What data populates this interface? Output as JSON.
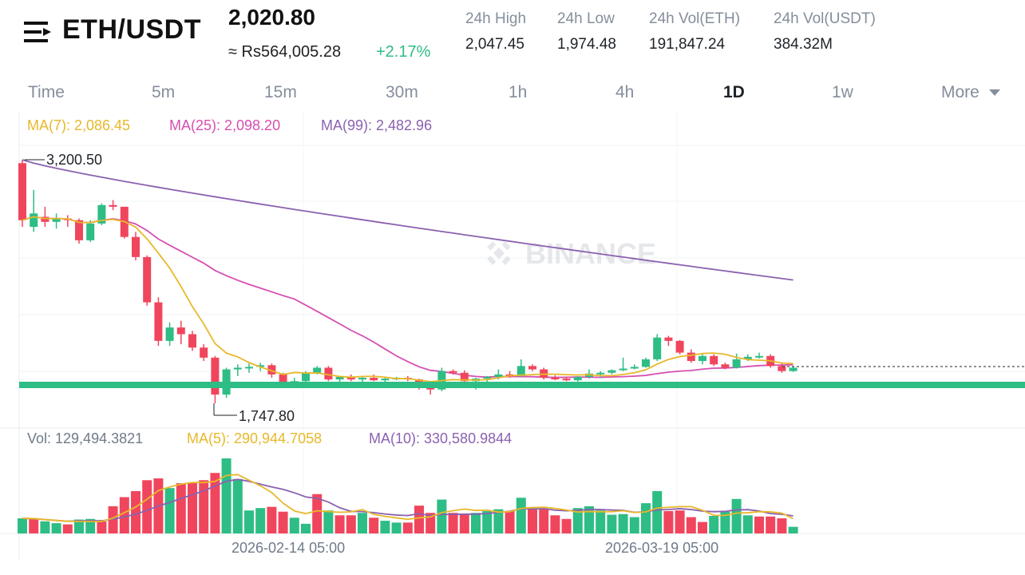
{
  "header": {
    "pair": "ETH/USDT",
    "price": "2,020.80",
    "fiat_price": "≈ Rs564,005.28",
    "change": "+2.17%",
    "stats": [
      {
        "label": "24h High",
        "value": "2,047.45"
      },
      {
        "label": "24h Low",
        "value": "1,974.48"
      },
      {
        "label": "24h Vol(ETH)",
        "value": "191,847.24"
      },
      {
        "label": "24h Vol(USDT)",
        "value": "384.32M"
      }
    ]
  },
  "tabs": [
    "Time",
    "5m",
    "15m",
    "30m",
    "1h",
    "4h",
    "1D",
    "1w",
    "More"
  ],
  "active_tab": "1D",
  "legend": {
    "ma7": "MA(7): 2,086.45",
    "ma25": "MA(25): 2,098.20",
    "ma99": "MA(99): 2,482.96",
    "vol": "Vol: 129,494.3821",
    "vol_ma5": "MA(5): 290,944.7058",
    "vol_ma10": "MA(10): 330,580.9844"
  },
  "watermark": "BINANCE",
  "colors": {
    "up": "#2ebd85",
    "down": "#f0465d",
    "ma7": "#e8b82a",
    "ma25": "#d64fb1",
    "ma99": "#8b61b0"
  },
  "chart_data": {
    "type": "candlestick",
    "high_marker": "3,200.50",
    "low_marker": "1,747.80",
    "x_labels": [
      "2026-02-14 05:00",
      "2026-03-19 05:00"
    ],
    "candles": [
      {
        "o": 3180,
        "h": 3200.5,
        "l": 2800,
        "c": 2840
      },
      {
        "o": 2800,
        "h": 3020,
        "l": 2770,
        "c": 2880
      },
      {
        "o": 2860,
        "h": 2920,
        "l": 2800,
        "c": 2830
      },
      {
        "o": 2830,
        "h": 2880,
        "l": 2790,
        "c": 2850
      },
      {
        "o": 2850,
        "h": 2870,
        "l": 2800,
        "c": 2840
      },
      {
        "o": 2840,
        "h": 2850,
        "l": 2700,
        "c": 2720
      },
      {
        "o": 2720,
        "h": 2840,
        "l": 2710,
        "c": 2820
      },
      {
        "o": 2820,
        "h": 2940,
        "l": 2810,
        "c": 2930
      },
      {
        "o": 2930,
        "h": 2960,
        "l": 2900,
        "c": 2920
      },
      {
        "o": 2920,
        "h": 2920,
        "l": 2730,
        "c": 2740
      },
      {
        "o": 2740,
        "h": 2770,
        "l": 2600,
        "c": 2620
      },
      {
        "o": 2620,
        "h": 2630,
        "l": 2330,
        "c": 2350
      },
      {
        "o": 2350,
        "h": 2380,
        "l": 2090,
        "c": 2120
      },
      {
        "o": 2120,
        "h": 2230,
        "l": 2090,
        "c": 2200
      },
      {
        "o": 2200,
        "h": 2240,
        "l": 2100,
        "c": 2160
      },
      {
        "o": 2160,
        "h": 2180,
        "l": 2060,
        "c": 2080
      },
      {
        "o": 2080,
        "h": 2100,
        "l": 2000,
        "c": 2020
      },
      {
        "o": 2020,
        "h": 2030,
        "l": 1747.8,
        "c": 1800
      },
      {
        "o": 1800,
        "h": 1960,
        "l": 1780,
        "c": 1950
      },
      {
        "o": 1950,
        "h": 1980,
        "l": 1910,
        "c": 1960
      },
      {
        "o": 1960,
        "h": 1985,
        "l": 1930,
        "c": 1965
      },
      {
        "o": 1965,
        "h": 1990,
        "l": 1940,
        "c": 1975
      },
      {
        "o": 1975,
        "h": 1985,
        "l": 1900,
        "c": 1920
      },
      {
        "o": 1920,
        "h": 1930,
        "l": 1860,
        "c": 1870
      },
      {
        "o": 1870,
        "h": 1900,
        "l": 1860,
        "c": 1880
      },
      {
        "o": 1880,
        "h": 1940,
        "l": 1870,
        "c": 1930
      },
      {
        "o": 1930,
        "h": 1970,
        "l": 1920,
        "c": 1960
      },
      {
        "o": 1960,
        "h": 1970,
        "l": 1880,
        "c": 1890
      },
      {
        "o": 1890,
        "h": 1910,
        "l": 1870,
        "c": 1905
      },
      {
        "o": 1905,
        "h": 1920,
        "l": 1880,
        "c": 1890
      },
      {
        "o": 1890,
        "h": 1910,
        "l": 1870,
        "c": 1900
      },
      {
        "o": 1900,
        "h": 1920,
        "l": 1880,
        "c": 1885
      },
      {
        "o": 1885,
        "h": 1900,
        "l": 1870,
        "c": 1895
      },
      {
        "o": 1895,
        "h": 1905,
        "l": 1885,
        "c": 1900
      },
      {
        "o": 1900,
        "h": 1910,
        "l": 1880,
        "c": 1890
      },
      {
        "o": 1890,
        "h": 1895,
        "l": 1830,
        "c": 1840
      },
      {
        "o": 1840,
        "h": 1860,
        "l": 1800,
        "c": 1830
      },
      {
        "o": 1830,
        "h": 1960,
        "l": 1820,
        "c": 1940
      },
      {
        "o": 1940,
        "h": 1950,
        "l": 1920,
        "c": 1930
      },
      {
        "o": 1930,
        "h": 1945,
        "l": 1870,
        "c": 1880
      },
      {
        "o": 1880,
        "h": 1900,
        "l": 1830,
        "c": 1895
      },
      {
        "o": 1895,
        "h": 1910,
        "l": 1870,
        "c": 1905
      },
      {
        "o": 1905,
        "h": 1950,
        "l": 1890,
        "c": 1920
      },
      {
        "o": 1920,
        "h": 1940,
        "l": 1900,
        "c": 1910
      },
      {
        "o": 1910,
        "h": 2010,
        "l": 1905,
        "c": 1970
      },
      {
        "o": 1970,
        "h": 1980,
        "l": 1940,
        "c": 1950
      },
      {
        "o": 1950,
        "h": 1960,
        "l": 1890,
        "c": 1900
      },
      {
        "o": 1900,
        "h": 1915,
        "l": 1885,
        "c": 1895
      },
      {
        "o": 1895,
        "h": 1905,
        "l": 1880,
        "c": 1885
      },
      {
        "o": 1885,
        "h": 1910,
        "l": 1878,
        "c": 1905
      },
      {
        "o": 1905,
        "h": 1950,
        "l": 1895,
        "c": 1925
      },
      {
        "o": 1925,
        "h": 1940,
        "l": 1900,
        "c": 1930
      },
      {
        "o": 1930,
        "h": 1950,
        "l": 1920,
        "c": 1945
      },
      {
        "o": 1945,
        "h": 2020,
        "l": 1940,
        "c": 1955
      },
      {
        "o": 1955,
        "h": 1980,
        "l": 1950,
        "c": 1965
      },
      {
        "o": 1965,
        "h": 2020,
        "l": 1960,
        "c": 2010
      },
      {
        "o": 2010,
        "h": 2160,
        "l": 2000,
        "c": 2140
      },
      {
        "o": 2140,
        "h": 2150,
        "l": 2090,
        "c": 2120
      },
      {
        "o": 2120,
        "h": 2125,
        "l": 2040,
        "c": 2050
      },
      {
        "o": 2050,
        "h": 2070,
        "l": 1990,
        "c": 2000
      },
      {
        "o": 2000,
        "h": 2040,
        "l": 1980,
        "c": 2030
      },
      {
        "o": 2030,
        "h": 2040,
        "l": 1970,
        "c": 1980
      },
      {
        "o": 1980,
        "h": 1990,
        "l": 1950,
        "c": 1960
      },
      {
        "o": 1960,
        "h": 2045,
        "l": 1955,
        "c": 2010
      },
      {
        "o": 2010,
        "h": 2040,
        "l": 2000,
        "c": 2025
      },
      {
        "o": 2025,
        "h": 2050,
        "l": 2015,
        "c": 2030
      },
      {
        "o": 2030,
        "h": 2040,
        "l": 1960,
        "c": 1970
      },
      {
        "o": 1970,
        "h": 1990,
        "l": 1930,
        "c": 1940
      },
      {
        "o": 1940,
        "h": 1965,
        "l": 1935,
        "c": 1960
      }
    ],
    "volume": [
      {
        "v": 250,
        "up": true
      },
      {
        "v": 240,
        "up": false
      },
      {
        "v": 200,
        "up": true
      },
      {
        "v": 170,
        "up": true
      },
      {
        "v": 150,
        "up": false
      },
      {
        "v": 230,
        "up": true
      },
      {
        "v": 240,
        "up": true
      },
      {
        "v": 200,
        "up": false
      },
      {
        "v": 450,
        "up": false
      },
      {
        "v": 600,
        "up": false
      },
      {
        "v": 700,
        "up": false
      },
      {
        "v": 880,
        "up": false
      },
      {
        "v": 910,
        "up": false
      },
      {
        "v": 750,
        "up": true
      },
      {
        "v": 830,
        "up": false
      },
      {
        "v": 840,
        "up": false
      },
      {
        "v": 880,
        "up": false
      },
      {
        "v": 1000,
        "up": false
      },
      {
        "v": 1240,
        "up": true
      },
      {
        "v": 900,
        "up": true
      },
      {
        "v": 380,
        "up": true
      },
      {
        "v": 420,
        "up": true
      },
      {
        "v": 440,
        "up": false
      },
      {
        "v": 360,
        "up": false
      },
      {
        "v": 260,
        "up": true
      },
      {
        "v": 160,
        "up": true
      },
      {
        "v": 650,
        "up": false
      },
      {
        "v": 380,
        "up": true
      },
      {
        "v": 300,
        "up": false
      },
      {
        "v": 300,
        "up": false
      },
      {
        "v": 340,
        "up": true
      },
      {
        "v": 260,
        "up": false
      },
      {
        "v": 210,
        "up": true
      },
      {
        "v": 180,
        "up": true
      },
      {
        "v": 180,
        "up": false
      },
      {
        "v": 460,
        "up": false
      },
      {
        "v": 340,
        "up": false
      },
      {
        "v": 560,
        "up": true
      },
      {
        "v": 340,
        "up": false
      },
      {
        "v": 320,
        "up": false
      },
      {
        "v": 340,
        "up": true
      },
      {
        "v": 370,
        "up": true
      },
      {
        "v": 400,
        "up": true
      },
      {
        "v": 370,
        "up": false
      },
      {
        "v": 590,
        "up": true
      },
      {
        "v": 410,
        "up": false
      },
      {
        "v": 400,
        "up": false
      },
      {
        "v": 300,
        "up": false
      },
      {
        "v": 240,
        "up": false
      },
      {
        "v": 420,
        "up": true
      },
      {
        "v": 450,
        "up": true
      },
      {
        "v": 380,
        "up": true
      },
      {
        "v": 310,
        "up": true
      },
      {
        "v": 320,
        "up": true
      },
      {
        "v": 270,
        "up": true
      },
      {
        "v": 500,
        "up": true
      },
      {
        "v": 700,
        "up": true
      },
      {
        "v": 370,
        "up": false
      },
      {
        "v": 380,
        "up": false
      },
      {
        "v": 270,
        "up": false
      },
      {
        "v": 190,
        "up": false
      },
      {
        "v": 290,
        "up": true
      },
      {
        "v": 360,
        "up": true
      },
      {
        "v": 570,
        "up": true
      },
      {
        "v": 300,
        "up": true
      },
      {
        "v": 280,
        "up": false
      },
      {
        "v": 280,
        "up": false
      },
      {
        "v": 250,
        "up": false
      },
      {
        "v": 110,
        "up": true
      }
    ]
  }
}
